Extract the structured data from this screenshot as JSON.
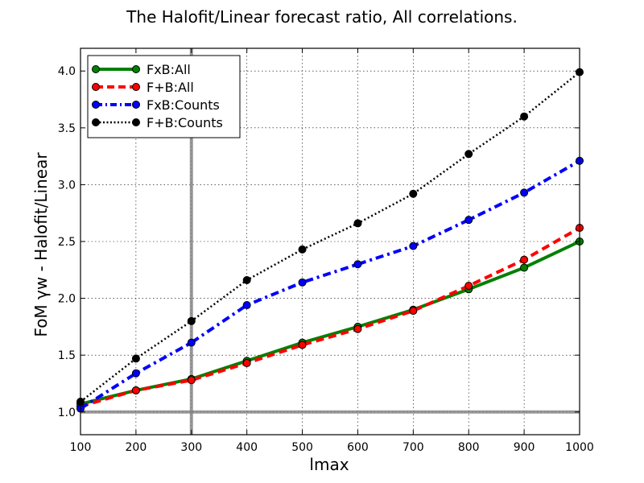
{
  "chart_data": {
    "type": "line",
    "title": "The Halofit/Linear forecast ratio, All correlations.",
    "xlabel": "lmax",
    "ylabel": "FoM γw - Halofit/Linear",
    "xlim": [
      100,
      1000
    ],
    "ylim": [
      0.8,
      4.2
    ],
    "xticks": [
      100,
      200,
      300,
      400,
      500,
      600,
      700,
      800,
      900,
      1000
    ],
    "yticks": [
      1.0,
      1.5,
      2.0,
      2.5,
      3.0,
      3.5,
      4.0
    ],
    "ytick_labels": [
      "1.0",
      "1.5",
      "2.0",
      "2.5",
      "3.0",
      "3.5",
      "4.0"
    ],
    "grid": true,
    "legend_position": "top-left",
    "reference_lines": {
      "x": 300,
      "y": 1.0,
      "color": "#808080"
    },
    "x": [
      100,
      200,
      300,
      400,
      500,
      600,
      700,
      800,
      900,
      1000
    ],
    "series": [
      {
        "name": "FxB:All",
        "color": "#008000",
        "style": "solid",
        "values": [
          1.07,
          1.19,
          1.29,
          1.45,
          1.61,
          1.75,
          1.9,
          2.08,
          2.27,
          2.5
        ]
      },
      {
        "name": "F+B:All",
        "color": "#ff0000",
        "style": "dashed",
        "values": [
          1.05,
          1.19,
          1.28,
          1.43,
          1.59,
          1.73,
          1.89,
          2.11,
          2.34,
          2.62
        ]
      },
      {
        "name": "FxB:Counts",
        "color": "#0000ff",
        "style": "dashdot",
        "values": [
          1.03,
          1.34,
          1.61,
          1.94,
          2.14,
          2.3,
          2.46,
          2.69,
          2.93,
          3.21
        ]
      },
      {
        "name": "F+B:Counts",
        "color": "#000000",
        "style": "dotted",
        "values": [
          1.09,
          1.47,
          1.8,
          2.16,
          2.43,
          2.66,
          2.92,
          3.27,
          3.6,
          3.99
        ]
      }
    ]
  }
}
